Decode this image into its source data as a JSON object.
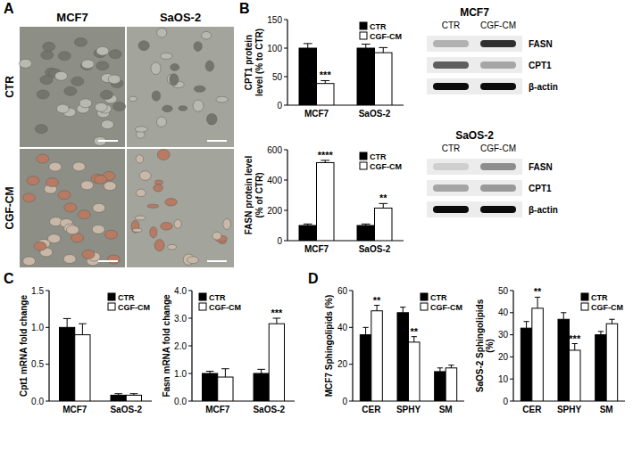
{
  "panel_labels": [
    "A",
    "B",
    "C",
    "D"
  ],
  "panel_a": {
    "columns": [
      "MCF7",
      "SaOS-2"
    ],
    "rows": [
      "CTR",
      "CGF-CM"
    ]
  },
  "blots": [
    {
      "title": "MCF7",
      "columns": [
        "CTR",
        "CGF-CM"
      ],
      "rows": [
        "FASN",
        "CPT1",
        "β-actin"
      ]
    },
    {
      "title": "SaOS-2",
      "columns": [
        "CTR",
        "CGF-CM"
      ],
      "rows": [
        "FASN",
        "CPT1",
        "β-actin"
      ]
    }
  ],
  "chart_data": [
    {
      "type": "bar",
      "y_label": "CPT1 protein level (% to CTR)",
      "categories": [
        "MCF7",
        "SaOS-2"
      ],
      "series": [
        {
          "name": "CTR",
          "color": "#000000",
          "values": [
            100,
            100
          ],
          "errors": [
            8,
            7
          ]
        },
        {
          "name": "CGF-CM",
          "color": "#ffffff",
          "values": [
            38,
            92
          ],
          "errors": [
            5,
            9
          ],
          "significance": [
            "***",
            null
          ]
        }
      ],
      "ylim": [
        0,
        150
      ],
      "yticks": [
        0,
        50,
        100,
        150
      ],
      "legend": "top-right"
    },
    {
      "type": "bar",
      "y_label": "FASN protein level (% of CTR)",
      "categories": [
        "MCF7",
        "SaOS-2"
      ],
      "series": [
        {
          "name": "CTR",
          "color": "#000000",
          "values": [
            100,
            100
          ],
          "errors": [
            10,
            10
          ]
        },
        {
          "name": "CGF-CM",
          "color": "#ffffff",
          "values": [
            515,
            215
          ],
          "errors": [
            15,
            30
          ],
          "significance": [
            "****",
            "**"
          ]
        }
      ],
      "ylim": [
        0,
        600
      ],
      "yticks": [
        0,
        200,
        400,
        600
      ],
      "legend": "top-right"
    },
    {
      "type": "bar",
      "y_label": "Cpt1 mRNA fold change",
      "categories": [
        "MCF7",
        "SaOS-2"
      ],
      "series": [
        {
          "name": "CTR",
          "color": "#000000",
          "values": [
            1.0,
            0.08
          ],
          "errors": [
            0.12,
            0.02
          ]
        },
        {
          "name": "CGF-CM",
          "color": "#ffffff",
          "values": [
            0.9,
            0.08
          ],
          "errors": [
            0.15,
            0.02
          ]
        }
      ],
      "ylim": [
        0,
        1.5
      ],
      "yticks": [
        {
          "value": 0,
          "label": "0.0"
        },
        0.5,
        {
          "value": 1,
          "label": "1.0"
        },
        1.5
      ],
      "legend": "top-right"
    },
    {
      "type": "bar",
      "y_label": "Fasn mRNA fold change",
      "categories": [
        "MCF7",
        "SaOS-2"
      ],
      "series": [
        {
          "name": "CTR",
          "color": "#000000",
          "values": [
            1.0,
            1.0
          ],
          "errors": [
            0.08,
            0.15
          ]
        },
        {
          "name": "CGF-CM",
          "color": "#ffffff",
          "values": [
            0.87,
            2.8
          ],
          "errors": [
            0.3,
            0.2
          ],
          "significance": [
            null,
            "***"
          ]
        }
      ],
      "ylim": [
        0,
        4
      ],
      "yticks": [
        {
          "value": 0,
          "label": "0.0"
        },
        {
          "value": 1,
          "label": "1.0"
        },
        {
          "value": 2,
          "label": "2.0"
        },
        {
          "value": 3,
          "label": "3.0"
        },
        {
          "value": 4,
          "label": "4.0"
        }
      ],
      "legend": "top-left"
    },
    {
      "type": "bar",
      "y_label": "MCF7 Sphingolipids (%)",
      "categories": [
        "CER",
        "SPHY",
        "SM"
      ],
      "series": [
        {
          "name": "CTR",
          "color": "#000000",
          "values": [
            36,
            48,
            16
          ],
          "errors": [
            4,
            3,
            2
          ]
        },
        {
          "name": "CGF-CM",
          "color": "#ffffff",
          "values": [
            49,
            32,
            18
          ],
          "errors": [
            3,
            3,
            1.5
          ],
          "significance": [
            "**",
            "**",
            null
          ]
        }
      ],
      "ylim": [
        0,
        60
      ],
      "yticks": [
        0,
        20,
        40,
        60
      ],
      "legend": "top-right"
    },
    {
      "type": "bar",
      "y_label": "SaOS-2 Sphingolipids (%)",
      "categories": [
        "CER",
        "SPHY",
        "SM"
      ],
      "series": [
        {
          "name": "CTR",
          "color": "#000000",
          "values": [
            33,
            37,
            30
          ],
          "errors": [
            3,
            3,
            1.5
          ]
        },
        {
          "name": "CGF-CM",
          "color": "#ffffff",
          "values": [
            42,
            23,
            35
          ],
          "errors": [
            5,
            3,
            2
          ],
          "significance": [
            "**",
            "***",
            null
          ]
        }
      ],
      "ylim": [
        0,
        50
      ],
      "yticks": [
        0,
        10,
        20,
        30,
        40,
        50
      ],
      "legend": "top-right"
    }
  ]
}
